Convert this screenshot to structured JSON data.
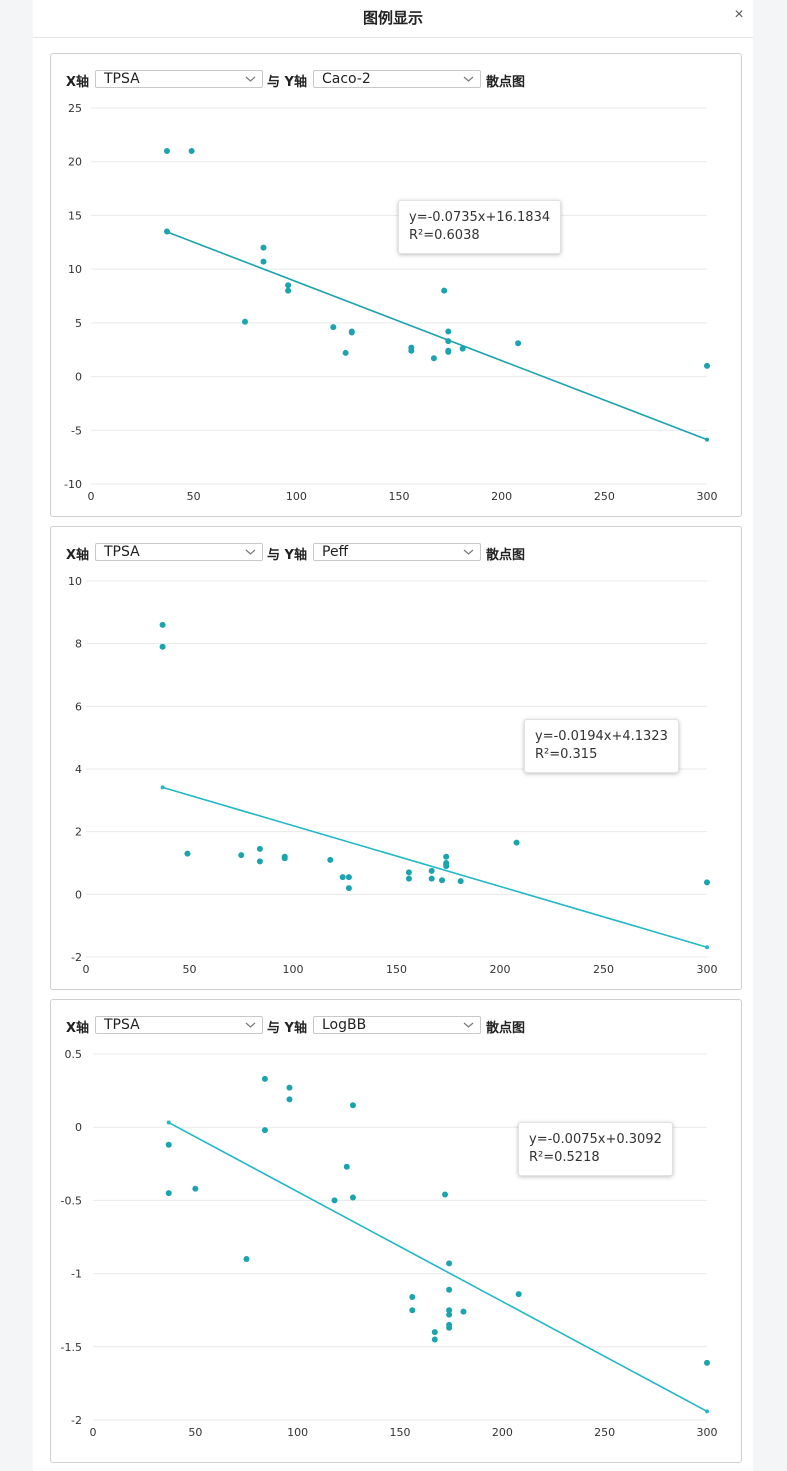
{
  "dialog": {
    "title": "图例显示",
    "close_icon": "×"
  },
  "controls": {
    "x_axis_label": "X轴",
    "with_y_axis_label": "与 Y轴",
    "scatter_label": "散点图",
    "dropdown_icon": "chevron-down-icon"
  },
  "colors": {
    "point": "#1ba3b0",
    "line": "#1ba3b0",
    "line_light": "#21b8c8",
    "grid": "#e9e9e9"
  },
  "chart_data": [
    {
      "type": "scatter",
      "x_field": "TPSA",
      "y_field": "Caco-2",
      "xlim": [
        0,
        300
      ],
      "ylim": [
        -10,
        25
      ],
      "xticks": [
        0,
        50,
        100,
        150,
        200,
        250,
        300
      ],
      "yticks": [
        -10,
        -5,
        0,
        5,
        10,
        15,
        20,
        25
      ],
      "grid": true,
      "points": [
        [
          37,
          21
        ],
        [
          49,
          21
        ],
        [
          37,
          13.5
        ],
        [
          75,
          5.1
        ],
        [
          84,
          12
        ],
        [
          84,
          10.7
        ],
        [
          96,
          8.5
        ],
        [
          96,
          8
        ],
        [
          118,
          4.6
        ],
        [
          124,
          2.2
        ],
        [
          127,
          4.2
        ],
        [
          127,
          4.1
        ],
        [
          156,
          2.7
        ],
        [
          156,
          2.4
        ],
        [
          167,
          1.7
        ],
        [
          172,
          8
        ],
        [
          174,
          4.2
        ],
        [
          174,
          3.3
        ],
        [
          174,
          2.4
        ],
        [
          174,
          2.3
        ],
        [
          181,
          2.6
        ],
        [
          208,
          3.1
        ],
        [
          300,
          1
        ]
      ],
      "trendline": {
        "slope": -0.0735,
        "intercept": 16.1834,
        "x_range": [
          37,
          300
        ],
        "equation": "y=-0.0735x+16.1834",
        "r2": "R²=0.6038"
      }
    },
    {
      "type": "scatter",
      "x_field": "TPSA",
      "y_field": "Peff",
      "xlim": [
        0,
        300
      ],
      "ylim": [
        -2,
        10
      ],
      "xticks": [
        0,
        50,
        100,
        150,
        200,
        250,
        300
      ],
      "yticks": [
        -2,
        0,
        2,
        4,
        6,
        8,
        10
      ],
      "grid": true,
      "points": [
        [
          37,
          8.6
        ],
        [
          37,
          7.9
        ],
        [
          49,
          1.3
        ],
        [
          75,
          1.25
        ],
        [
          84,
          1.45
        ],
        [
          84,
          1.05
        ],
        [
          96,
          1.2
        ],
        [
          96,
          1.15
        ],
        [
          118,
          1.1
        ],
        [
          124,
          0.55
        ],
        [
          127,
          0.55
        ],
        [
          127,
          0.2
        ],
        [
          156,
          0.7
        ],
        [
          156,
          0.5
        ],
        [
          167,
          0.75
        ],
        [
          167,
          0.5
        ],
        [
          172,
          0.45
        ],
        [
          174,
          1.2
        ],
        [
          174,
          1.0
        ],
        [
          174,
          0.95
        ],
        [
          174,
          0.9
        ],
        [
          181,
          0.42
        ],
        [
          208,
          1.65
        ],
        [
          300,
          0.38
        ]
      ],
      "trendline": {
        "slope": -0.0194,
        "intercept": 4.1323,
        "x_range": [
          37,
          300
        ],
        "equation": "y=-0.0194x+4.1323",
        "r2": "R²=0.315"
      }
    },
    {
      "type": "scatter",
      "x_field": "TPSA",
      "y_field": "LogBB",
      "xlim": [
        0,
        300
      ],
      "ylim": [
        -2,
        0.5
      ],
      "xticks": [
        0,
        50,
        100,
        150,
        200,
        250,
        300
      ],
      "yticks": [
        -2,
        -1.5,
        -1,
        -0.5,
        0,
        0.5
      ],
      "grid": true,
      "points": [
        [
          37,
          -0.12
        ],
        [
          37,
          -0.45
        ],
        [
          50,
          -0.42
        ],
        [
          75,
          -0.9
        ],
        [
          84,
          0.33
        ],
        [
          84,
          -0.02
        ],
        [
          96,
          0.27
        ],
        [
          96,
          0.19
        ],
        [
          118,
          -0.5
        ],
        [
          124,
          -0.27
        ],
        [
          127,
          0.15
        ],
        [
          127,
          -0.48
        ],
        [
          156,
          -1.16
        ],
        [
          156,
          -1.25
        ],
        [
          167,
          -1.4
        ],
        [
          167,
          -1.45
        ],
        [
          172,
          -0.46
        ],
        [
          174,
          -0.93
        ],
        [
          174,
          -1.11
        ],
        [
          174,
          -1.25
        ],
        [
          174,
          -1.28
        ],
        [
          174,
          -1.35
        ],
        [
          174,
          -1.37
        ],
        [
          181,
          -1.26
        ],
        [
          208,
          -1.14
        ],
        [
          300,
          -1.61
        ]
      ],
      "trendline": {
        "slope": -0.0075,
        "intercept": 0.3092,
        "x_range": [
          37,
          300
        ],
        "equation": "y=-0.0075x+0.3092",
        "r2": "R²=0.5218"
      }
    }
  ]
}
